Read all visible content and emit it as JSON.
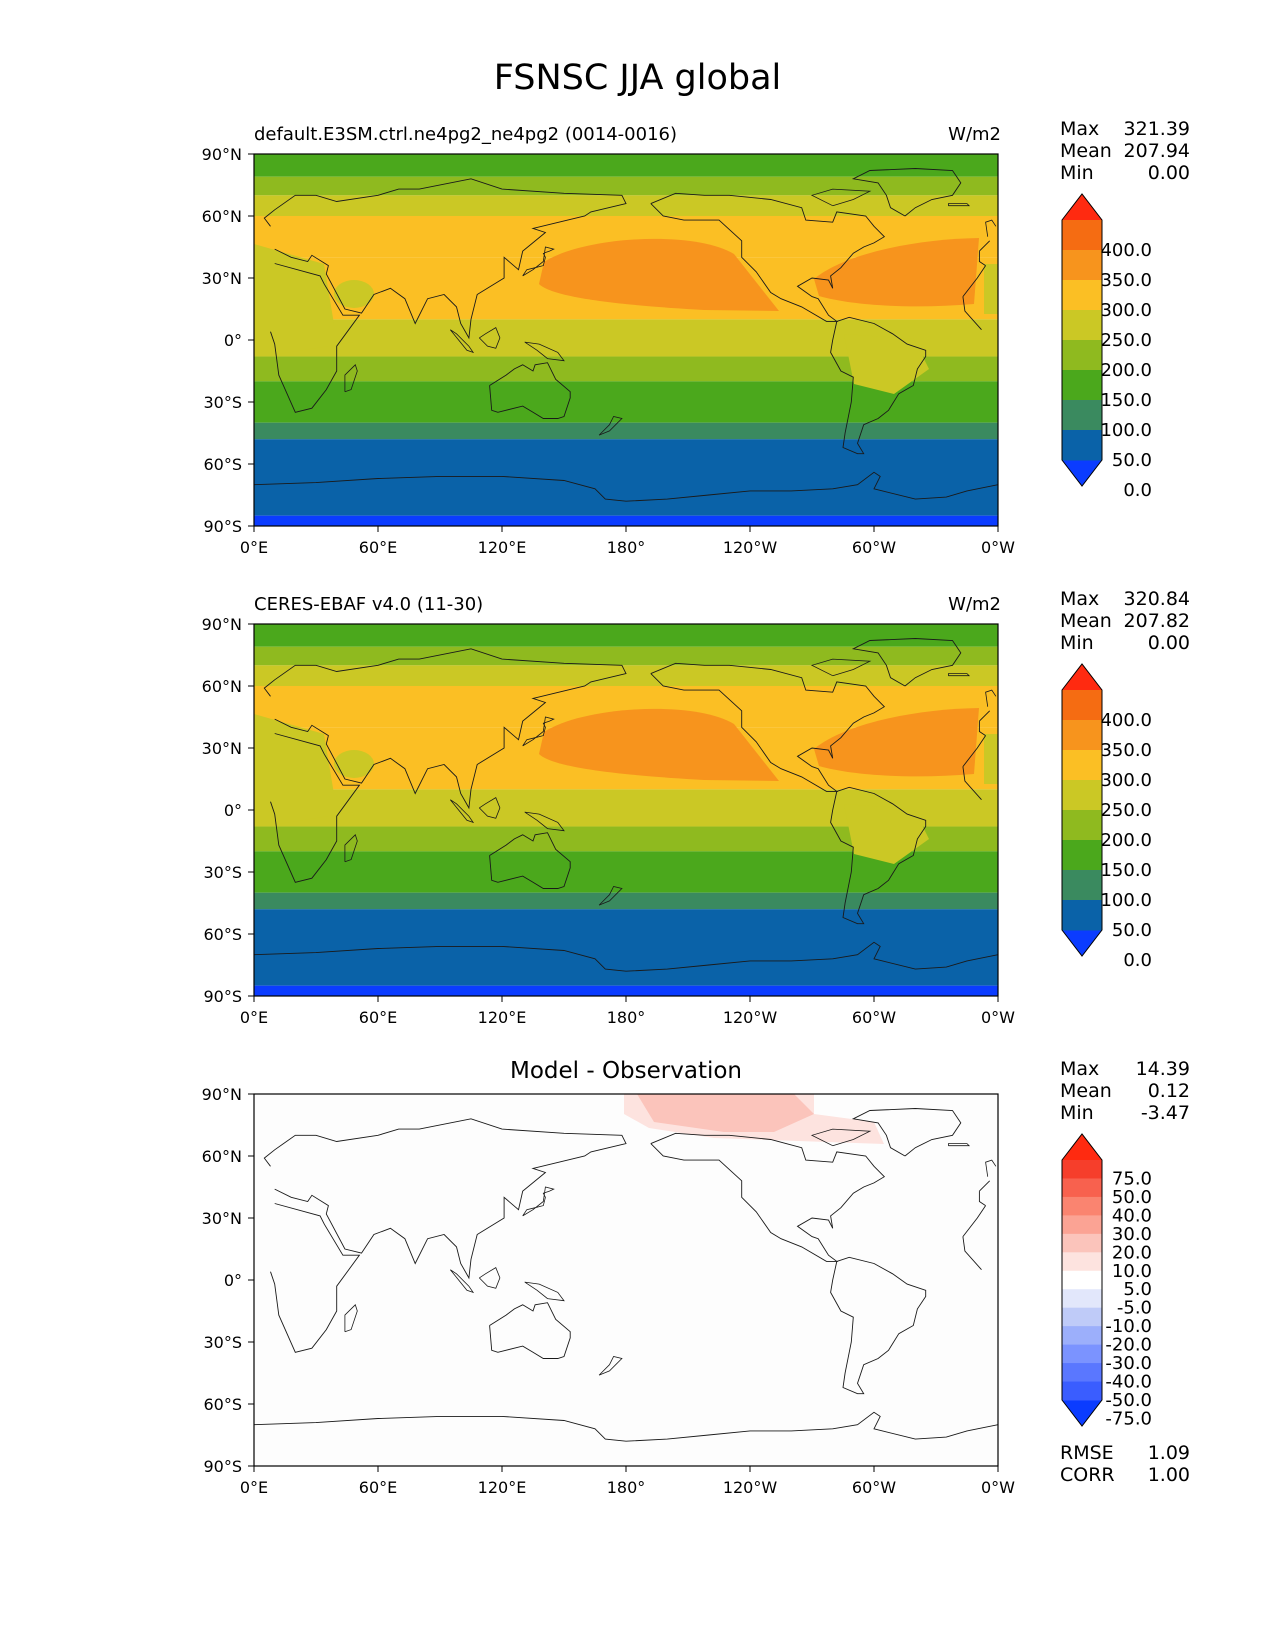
{
  "figure_title": "FSNSC JJA global",
  "panels": [
    {
      "title_left": "default.E3SM.ctrl.ne4pg2_ne4pg2 (0014-0016)",
      "units": "W/m2",
      "stats": {
        "max_label": "Max",
        "max": "321.39",
        "mean_label": "Mean",
        "mean": "207.94",
        "min_label": "Min",
        "min": "0.00"
      },
      "colorbar_labels": [
        "400.0",
        "350.0",
        "300.0",
        "250.0",
        "200.0",
        "150.0",
        "100.0",
        "50.0",
        "0.0"
      ]
    },
    {
      "title_left": "CERES-EBAF v4.0 (11-30)",
      "units": "W/m2",
      "stats": {
        "max_label": "Max",
        "max": "320.84",
        "mean_label": "Mean",
        "mean": "207.82",
        "min_label": "Min",
        "min": "0.00"
      },
      "colorbar_labels": [
        "400.0",
        "350.0",
        "300.0",
        "250.0",
        "200.0",
        "150.0",
        "100.0",
        "50.0",
        "0.0"
      ]
    },
    {
      "title_center": "Model - Observation",
      "stats": {
        "max_label": "Max",
        "max": "14.39",
        "mean_label": "Mean",
        "mean": "0.12",
        "min_label": "Min",
        "min": "-3.47"
      },
      "colorbar_labels": [
        "75.0",
        "50.0",
        "40.0",
        "30.0",
        "20.0",
        "10.0",
        "5.0",
        "-5.0",
        "-10.0",
        "-20.0",
        "-30.0",
        "-40.0",
        "-50.0",
        "-75.0"
      ],
      "metrics": {
        "rmse_label": "RMSE",
        "rmse": "1.09",
        "corr_label": "CORR",
        "corr": "1.00"
      }
    }
  ],
  "axes": {
    "lat_ticks": [
      "90°N",
      "60°N",
      "30°N",
      "0°",
      "30°S",
      "60°S",
      "90°S"
    ],
    "lon_ticks": [
      "0°E",
      "60°E",
      "120°E",
      "180°",
      "120°W",
      "60°W",
      "0°W"
    ]
  },
  "colors": {
    "field_levels": [
      "#0b3cff",
      "#0a62a8",
      "#3a8a5f",
      "#4ba81c",
      "#8fba1f",
      "#cbc825",
      "#fbbf24",
      "#f7941d",
      "#f56c12",
      "#ff2a10"
    ],
    "diff_levels": [
      "#0b3cff",
      "#3a5dff",
      "#5a77ff",
      "#7b93ff",
      "#9caffb",
      "#bfcbf8",
      "#e2e7fb",
      "#ffffff",
      "#fde3df",
      "#fbc4bb",
      "#fba394",
      "#fa8470",
      "#f8614e",
      "#f63e2b",
      "#ff2a10"
    ]
  }
}
